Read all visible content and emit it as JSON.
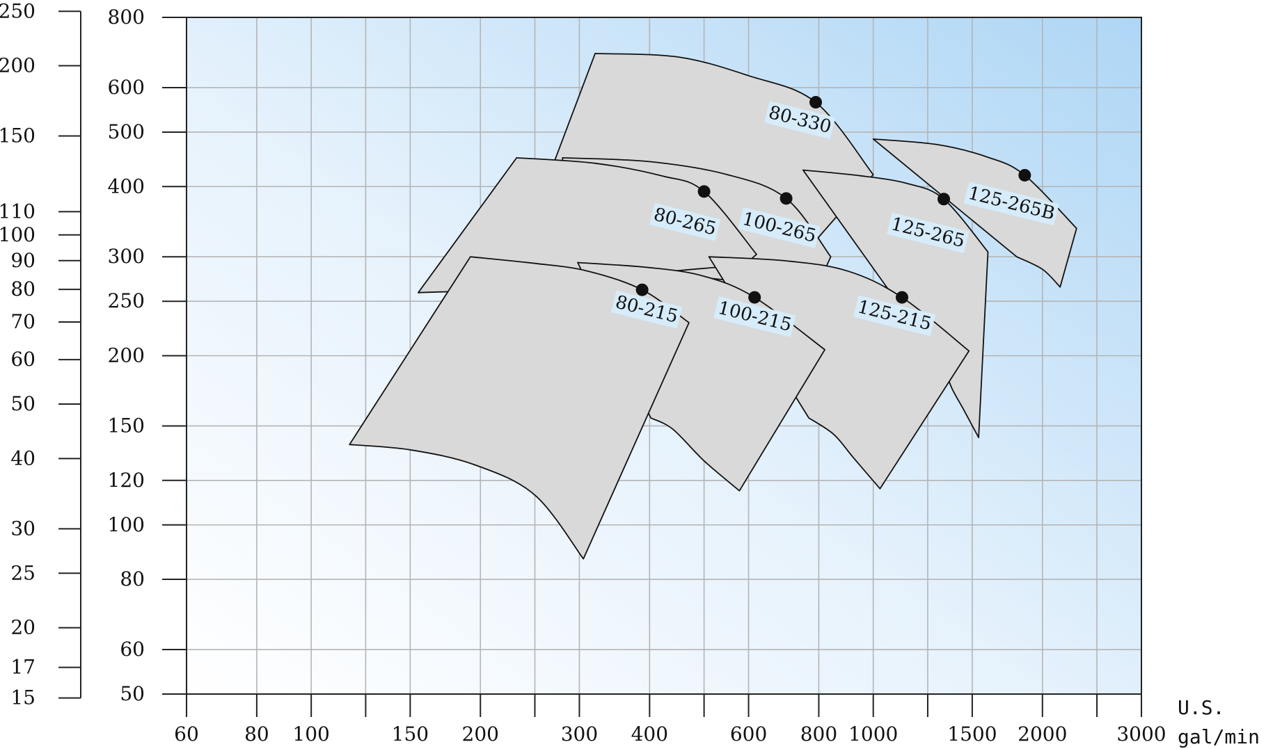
{
  "chart_data": {
    "type": "scatter",
    "title": "",
    "xlabel": "U.S. gal/min",
    "x_scale": "log",
    "x_ticks": [
      60,
      80,
      100,
      150,
      200,
      300,
      400,
      600,
      800,
      1000,
      1500,
      2000,
      3000
    ],
    "x_grid": [
      60,
      80,
      100,
      125,
      150,
      200,
      250,
      300,
      400,
      500,
      600,
      800,
      1000,
      1250,
      1500,
      2000,
      2500,
      3000
    ],
    "xlim": [
      60,
      3000
    ],
    "x_unit_lines": [
      "U.S.",
      "gal/min"
    ],
    "y_scale": "log",
    "y_ticks": [
      50,
      60,
      80,
      100,
      120,
      150,
      200,
      250,
      300,
      400,
      500,
      600,
      800
    ],
    "y_grid": [
      50,
      60,
      80,
      100,
      120,
      150,
      200,
      250,
      300,
      400,
      500,
      600,
      800
    ],
    "ylim": [
      50,
      800
    ],
    "y2_ticks": [
      15,
      17,
      20,
      25,
      30,
      40,
      50,
      60,
      70,
      80,
      90,
      100,
      110,
      150,
      200,
      250
    ],
    "grid": true,
    "colors": {
      "bg_top_right": "#aed6f5",
      "bg_bottom_left": "#ffffff",
      "region_fill": "#d9d9d9",
      "line": "#111111",
      "label_bg": "#d6ecfb",
      "grid": "#b4b4b4"
    },
    "series": [
      {
        "name": "80-215",
        "bep": [
          388,
          262
        ],
        "label_pos": [
          395,
          241
        ],
        "region": {
          "top": [
            [
              192,
              300
            ],
            [
              250,
              292
            ],
            [
              310,
              283
            ],
            [
              388,
              262
            ],
            [
              470,
              229
            ]
          ],
          "right": [
            [
              470,
              229
            ],
            [
              305,
              87
            ]
          ],
          "bottom": [
            [
              305,
              87
            ],
            [
              250,
              113
            ],
            [
              195,
              128
            ],
            [
              150,
              136
            ],
            [
              117,
              139
            ]
          ],
          "left": [
            [
              117,
              139
            ],
            [
              192,
              300
            ]
          ]
        }
      },
      {
        "name": "100-215",
        "bep": [
          615,
          254
        ],
        "label_pos": [
          615,
          234
        ],
        "region": {
          "top": [
            [
              298,
              293
            ],
            [
              400,
              287
            ],
            [
              500,
              277
            ],
            [
              615,
              254
            ],
            [
              820,
              205
            ]
          ],
          "right": [
            [
              820,
              205
            ],
            [
              578,
              115
            ]
          ],
          "bottom": [
            [
              578,
              115
            ],
            [
              500,
              130
            ],
            [
              440,
              148
            ],
            [
              402,
              155
            ]
          ],
          "left": [
            [
              402,
              155
            ],
            [
              298,
              293
            ]
          ]
        }
      },
      {
        "name": "125-215",
        "bep": [
          1125,
          254
        ],
        "label_pos": [
          1090,
          235
        ],
        "region": {
          "top": [
            [
              510,
              300
            ],
            [
              700,
              295
            ],
            [
              900,
              283
            ],
            [
              1125,
              254
            ],
            [
              1480,
              204
            ]
          ],
          "right": [
            [
              1480,
              204
            ],
            [
              1028,
              116
            ]
          ],
          "bottom": [
            [
              1028,
              116
            ],
            [
              920,
              132
            ],
            [
              850,
              145
            ],
            [
              768,
              155
            ]
          ],
          "left": [
            [
              768,
              155
            ],
            [
              510,
              300
            ]
          ]
        }
      },
      {
        "name": "80-265",
        "bep": [
          500,
          392
        ],
        "label_pos": [
          462,
          345
        ],
        "region": {
          "top": [
            [
              232,
              450
            ],
            [
              320,
              440
            ],
            [
              420,
              418
            ],
            [
              500,
              392
            ],
            [
              620,
              303
            ]
          ],
          "right": [
            [
              620,
              303
            ],
            [
              590,
              290
            ]
          ],
          "bottom": [
            [
              590,
              290
            ],
            [
              400,
              280
            ],
            [
              280,
              265
            ],
            [
              155,
              259
            ]
          ],
          "left": [
            [
              155,
              259
            ],
            [
              232,
              450
            ]
          ]
        }
      },
      {
        "name": "100-265",
        "bep": [
          700,
          381
        ],
        "label_pos": [
          680,
          337
        ],
        "region": {
          "top": [
            [
              280,
              450
            ],
            [
              400,
              443
            ],
            [
              550,
              420
            ],
            [
              700,
              381
            ],
            [
              840,
              300
            ]
          ],
          "right": [
            [
              840,
              300
            ],
            [
              790,
              262
            ]
          ],
          "bottom": [
            [
              790,
              262
            ],
            [
              600,
              270
            ],
            [
              420,
              282
            ],
            [
              280,
              305
            ]
          ],
          "left": [
            [
              280,
              305
            ],
            [
              280,
              450
            ]
          ]
        }
      },
      {
        "name": "80-330",
        "bep": [
          790,
          565
        ],
        "label_pos": [
          740,
          524
        ],
        "region": {
          "top": [
            [
              320,
              690
            ],
            [
              450,
              680
            ],
            [
              600,
              630
            ],
            [
              790,
              565
            ],
            [
              1000,
              420
            ]
          ],
          "right": [
            [
              1000,
              420
            ],
            [
              680,
              270
            ]
          ],
          "bottom": [
            [
              680,
              270
            ],
            [
              400,
              295
            ],
            [
              270,
              440
            ]
          ],
          "left": [
            [
              270,
              440
            ],
            [
              320,
              690
            ]
          ]
        }
      },
      {
        "name": "125-265",
        "bep": [
          1335,
          380
        ],
        "label_pos": [
          1250,
          330
        ],
        "region": {
          "top": [
            [
              750,
              428
            ],
            [
              950,
              418
            ],
            [
              1150,
              405
            ],
            [
              1335,
              380
            ],
            [
              1600,
              306
            ]
          ],
          "right": [
            [
              1600,
              306
            ],
            [
              1540,
              143
            ]
          ],
          "bottom": [
            [
              1540,
              143
            ],
            [
              1450,
              160
            ],
            [
              1380,
              175
            ],
            [
              1340,
              190
            ]
          ],
          "left": [
            [
              1340,
              190
            ],
            [
              750,
              428
            ]
          ]
        }
      },
      {
        "name": "125-265B",
        "bep": [
          1860,
          419
        ],
        "label_pos": [
          1760,
          372
        ],
        "region": {
          "top": [
            [
              1000,
              486
            ],
            [
              1300,
              475
            ],
            [
              1600,
              451
            ],
            [
              1860,
              419
            ],
            [
              2300,
              337
            ]
          ],
          "right": [
            [
              2300,
              337
            ],
            [
              2150,
              265
            ]
          ],
          "bottom": [
            [
              2150,
              265
            ],
            [
              2000,
              285
            ],
            [
              1800,
              300
            ]
          ],
          "left": [
            [
              1800,
              300
            ],
            [
              1000,
              486
            ]
          ]
        }
      }
    ]
  }
}
